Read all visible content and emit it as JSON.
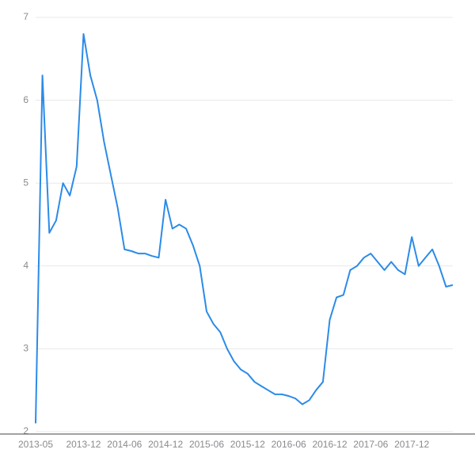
{
  "chart_data": {
    "type": "line",
    "x": [
      "2013-05",
      "2013-06",
      "2013-07",
      "2013-08",
      "2013-09",
      "2013-10",
      "2013-11",
      "2013-12",
      "2014-01",
      "2014-02",
      "2014-03",
      "2014-04",
      "2014-05",
      "2014-06",
      "2014-07",
      "2014-08",
      "2014-09",
      "2014-10",
      "2014-11",
      "2014-12",
      "2015-01",
      "2015-02",
      "2015-03",
      "2015-04",
      "2015-05",
      "2015-06",
      "2015-07",
      "2015-08",
      "2015-09",
      "2015-10",
      "2015-11",
      "2015-12",
      "2016-01",
      "2016-02",
      "2016-03",
      "2016-04",
      "2016-05",
      "2016-06",
      "2016-07",
      "2016-08",
      "2016-09",
      "2016-10",
      "2016-11",
      "2016-12",
      "2017-01",
      "2017-02",
      "2017-03",
      "2017-04",
      "2017-05",
      "2017-06",
      "2017-07",
      "2017-08",
      "2017-09",
      "2017-10",
      "2017-11",
      "2017-12",
      "2018-01",
      "2018-02",
      "2018-03",
      "2018-04",
      "2018-05",
      "2018-06"
    ],
    "values": [
      2.1,
      6.3,
      4.4,
      4.55,
      5.0,
      4.85,
      5.2,
      6.8,
      6.3,
      6.0,
      5.5,
      5.1,
      4.7,
      4.2,
      4.18,
      4.15,
      4.15,
      4.12,
      4.1,
      4.8,
      4.45,
      4.5,
      4.45,
      4.25,
      4.0,
      3.45,
      3.3,
      3.2,
      3.0,
      2.85,
      2.75,
      2.7,
      2.6,
      2.55,
      2.5,
      2.45,
      2.45,
      2.43,
      2.4,
      2.33,
      2.38,
      2.5,
      2.6,
      3.35,
      3.62,
      3.65,
      3.95,
      4.0,
      4.1,
      4.15,
      4.05,
      3.95,
      4.05,
      3.95,
      3.9,
      4.35,
      4.0,
      4.1,
      4.2,
      4.0,
      3.75,
      3.77
    ],
    "color": "#2b8be8",
    "xticks": [
      "2013-05",
      "2013-12",
      "2014-06",
      "2014-12",
      "2015-06",
      "2015-12",
      "2016-06",
      "2016-12",
      "2017-06",
      "2017-12"
    ],
    "ylim": [
      2,
      7
    ],
    "yticks": [
      2,
      3,
      4,
      5,
      6,
      7
    ],
    "grid": true
  }
}
